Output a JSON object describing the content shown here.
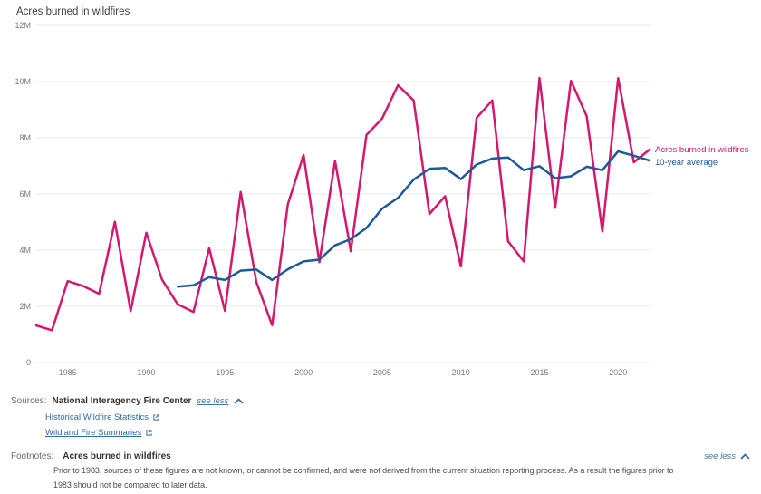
{
  "title": "Acres burned in wildfires",
  "colors": {
    "acres": "#d4186e",
    "average": "#1e5a96",
    "link": "#2d6ca2",
    "grid": "#e8e8e8",
    "tick_text": "#7b7b7e",
    "dark_text": "#333333"
  },
  "chart_data": {
    "type": "line",
    "title": "Acres burned in wildfires",
    "values_unit": "millions of acres",
    "ylim": [
      0,
      12
    ],
    "ytick_values": [
      0,
      2,
      4,
      6,
      8,
      10,
      12
    ],
    "ytick_labels": [
      "0",
      "2M",
      "4M",
      "6M",
      "8M",
      "10M",
      "12M"
    ],
    "xticks": [
      1985,
      1990,
      1995,
      2000,
      2005,
      2010,
      2015,
      2020
    ],
    "x_start": 1983,
    "x_end": 2022,
    "grid": true,
    "legend_position": "right-of-line-end",
    "series": [
      {
        "name": "Acres burned in wildfires",
        "color_key": "acres",
        "start_year": 1983,
        "values": [
          1.32,
          1.15,
          2.9,
          2.72,
          2.45,
          5.01,
          1.83,
          4.62,
          2.95,
          2.07,
          1.8,
          4.07,
          1.84,
          6.07,
          2.86,
          1.33,
          5.63,
          7.39,
          3.57,
          7.18,
          3.96,
          8.1,
          8.69,
          9.87,
          9.33,
          5.29,
          5.92,
          3.42,
          8.71,
          9.33,
          4.32,
          3.6,
          10.13,
          5.51,
          10.03,
          8.77,
          4.66,
          10.12,
          7.13,
          7.58
        ]
      },
      {
        "name": "10-year average",
        "color_key": "average",
        "start_year": 1992,
        "values": [
          2.7,
          2.75,
          3.04,
          2.94,
          3.27,
          3.31,
          2.94,
          3.32,
          3.6,
          3.66,
          4.17,
          4.39,
          4.79,
          5.48,
          5.86,
          6.51,
          6.9,
          6.93,
          6.53,
          7.05,
          7.26,
          7.3,
          6.85,
          6.99,
          6.56,
          6.63,
          6.97,
          6.85,
          7.52,
          7.36,
          7.19
        ]
      }
    ]
  },
  "sources": {
    "label": "Sources:",
    "name": "National Interagency Fire Center",
    "see_less": "see less",
    "links": [
      {
        "label": "Historical Wildfire Statistics"
      },
      {
        "label": "Wildland Fire Summaries"
      }
    ]
  },
  "footnotes": {
    "label": "Footnotes:",
    "title": "Acres burned in wildfires",
    "see_less": "see less",
    "text": "Prior to 1983, sources of these figures are not known, or cannot be confirmed, and were not derived from the current situation reporting process. As a result the figures prior to 1983 should not be compared to later data."
  }
}
